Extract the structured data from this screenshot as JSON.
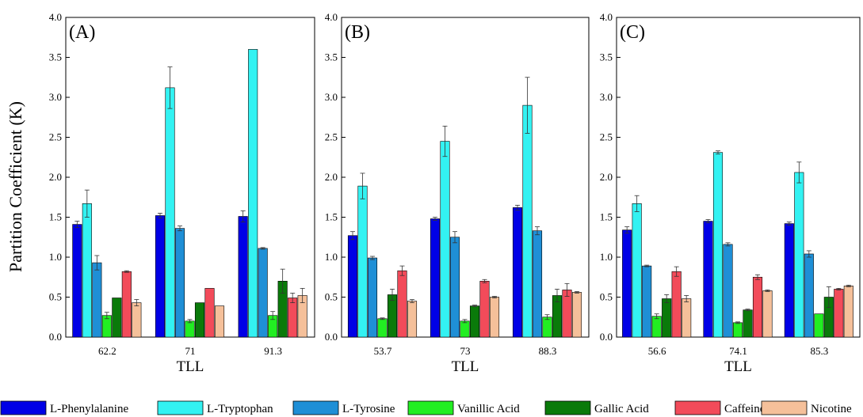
{
  "chart_data": {
    "type": "bar",
    "ylabel": "Partition Coefficient (K)",
    "ylim": [
      0,
      4.0
    ],
    "yticks": [
      "0.0",
      "0.5",
      "1.0",
      "1.5",
      "2.0",
      "2.5",
      "3.0",
      "3.5",
      "4.0"
    ],
    "grid": false,
    "legend_position": "bottom",
    "series_meta": [
      {
        "name": "L-Phenylalanine",
        "color": "#0000e6"
      },
      {
        "name": "L-Tryptophan",
        "color": "#33f2f2"
      },
      {
        "name": "L-Tyrosine",
        "color": "#1f8fd6"
      },
      {
        "name": "Vanillic Acid",
        "color": "#22ee22"
      },
      {
        "name": "Gallic Acid",
        "color": "#0a7a0a"
      },
      {
        "name": "Caffeine",
        "color": "#f24b5a"
      },
      {
        "name": "Nicotine",
        "color": "#f5c09a"
      }
    ],
    "panels": [
      {
        "label": "(A)",
        "xlabel": "TLL",
        "categories": [
          "62.2",
          "71",
          "91.3"
        ],
        "values": [
          [
            1.41,
            1.67,
            0.93,
            0.27,
            0.49,
            0.82,
            0.43
          ],
          [
            1.52,
            3.12,
            1.36,
            0.2,
            0.43,
            0.61,
            0.39
          ],
          [
            1.51,
            3.6,
            1.11,
            0.27,
            0.7,
            0.49,
            0.52
          ]
        ],
        "errors": [
          [
            0.04,
            0.17,
            0.09,
            0.04,
            0.0,
            0.01,
            0.04
          ],
          [
            0.03,
            0.26,
            0.03,
            0.02,
            0.0,
            0.0,
            0.0
          ],
          [
            0.07,
            0.0,
            0.01,
            0.05,
            0.15,
            0.06,
            0.09
          ]
        ]
      },
      {
        "label": "(B)",
        "xlabel": "TLL",
        "categories": [
          "53.7",
          "73",
          "88.3"
        ],
        "values": [
          [
            1.27,
            1.89,
            0.99,
            0.23,
            0.53,
            0.83,
            0.45
          ],
          [
            1.48,
            2.45,
            1.25,
            0.2,
            0.39,
            0.7,
            0.5
          ],
          [
            1.62,
            2.9,
            1.33,
            0.25,
            0.52,
            0.59,
            0.56
          ]
        ],
        "errors": [
          [
            0.05,
            0.16,
            0.02,
            0.01,
            0.07,
            0.06,
            0.02
          ],
          [
            0.02,
            0.19,
            0.07,
            0.02,
            0.01,
            0.02,
            0.01
          ],
          [
            0.03,
            0.35,
            0.05,
            0.03,
            0.08,
            0.08,
            0.01
          ]
        ]
      },
      {
        "label": "(C)",
        "xlabel": "TLL",
        "categories": [
          "56.6",
          "74.1",
          "85.3"
        ],
        "values": [
          [
            1.34,
            1.67,
            0.89,
            0.26,
            0.48,
            0.82,
            0.48
          ],
          [
            1.45,
            2.31,
            1.16,
            0.18,
            0.34,
            0.75,
            0.58
          ],
          [
            1.42,
            2.06,
            1.04,
            0.29,
            0.5,
            0.6,
            0.64
          ]
        ],
        "errors": [
          [
            0.04,
            0.1,
            0.01,
            0.03,
            0.05,
            0.06,
            0.04
          ],
          [
            0.02,
            0.02,
            0.02,
            0.01,
            0.01,
            0.03,
            0.01
          ],
          [
            0.02,
            0.13,
            0.04,
            0.0,
            0.13,
            0.01,
            0.01
          ]
        ]
      }
    ]
  }
}
